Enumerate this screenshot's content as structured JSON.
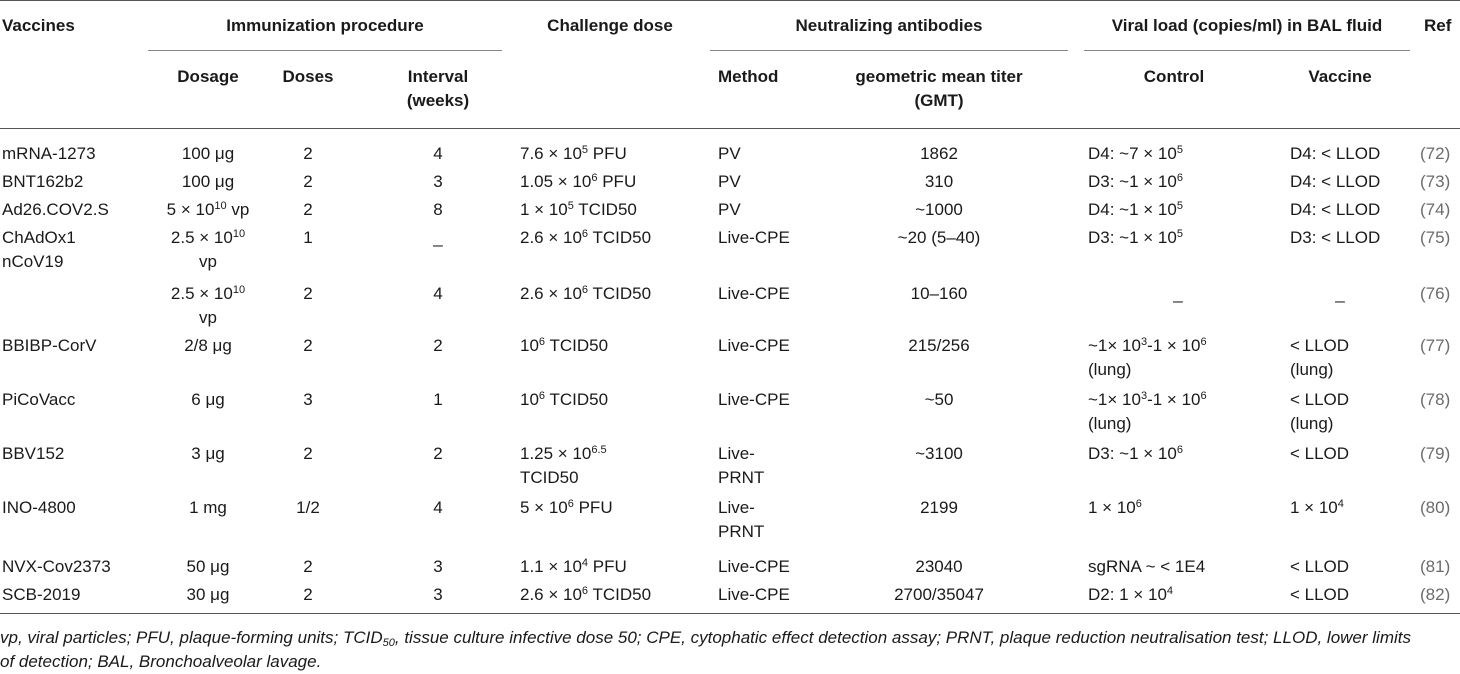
{
  "header": {
    "vaccines": "Vaccines",
    "immunization": "Immunization procedure",
    "challenge": "Challenge dose",
    "neutralizing": "Neutralizing antibodies",
    "viral_load": "Viral load (copies/ml) in BAL fluid",
    "ref": "Ref",
    "dosage": "Dosage",
    "doses": "Doses",
    "interval_1": "Interval",
    "interval_2": "(weeks)",
    "method": "Method",
    "gmt_1": "geometric mean titer",
    "gmt_2": "(GMT)",
    "control": "Control",
    "vaccine": "Vaccine"
  },
  "rows": [
    {
      "vaccine": [
        "mRNA-1273"
      ],
      "dosage": [
        "100 μg"
      ],
      "doses": "2",
      "interval": "4",
      "challenge": [
        [
          "7.6 × 10",
          "5",
          " PFU"
        ]
      ],
      "method": [
        "PV"
      ],
      "gmt": "1862",
      "control": [
        [
          "D4: ~7 × 10",
          "5",
          ""
        ]
      ],
      "vacc": [
        "D4: < LLOD"
      ],
      "ref": "(72)"
    },
    {
      "vaccine": [
        "BNT162b2"
      ],
      "dosage": [
        "100 μg"
      ],
      "doses": "2",
      "interval": "3",
      "challenge": [
        [
          "1.05 × 10",
          "6",
          " PFU"
        ]
      ],
      "method": [
        "PV"
      ],
      "gmt": "310",
      "control": [
        [
          "D3: ~1 × 10",
          "6",
          ""
        ]
      ],
      "vacc": [
        "D4: < LLOD"
      ],
      "ref": "(73)"
    },
    {
      "vaccine": [
        "Ad26.COV2.S"
      ],
      "dosage": [
        "5 × 10",
        "10",
        " vp"
      ],
      "doses": "2",
      "interval": "8",
      "challenge": [
        [
          "1 × 10",
          "5",
          " TCID50"
        ]
      ],
      "method": [
        "PV"
      ],
      "gmt": "~1000",
      "control": [
        [
          "D4: ~1 × 10",
          "5",
          ""
        ]
      ],
      "vacc": [
        "D4: < LLOD"
      ],
      "ref": "(74)"
    },
    {
      "vaccine": [
        "ChAdOx1",
        "nCoV19"
      ],
      "dosage": [
        "2.5 × 10",
        "10",
        ""
      ],
      "dosage2": "vp",
      "doses": "1",
      "interval": "_",
      "challenge": [
        [
          "2.6 × 10",
          "6",
          " TCID50"
        ]
      ],
      "method": [
        "Live-CPE"
      ],
      "gmt": "~20 (5–40)",
      "control": [
        [
          "D3: ~1 × 10",
          "5",
          ""
        ]
      ],
      "vacc": [
        "D3: < LLOD"
      ],
      "ref": "(75)"
    },
    {
      "vaccine": [],
      "dosage": [
        "2.5 × 10",
        "10",
        ""
      ],
      "dosage2": "vp",
      "doses": "2",
      "interval": "4",
      "challenge": [
        [
          "2.6 × 10",
          "6",
          " TCID50"
        ]
      ],
      "method": [
        "Live-CPE"
      ],
      "gmt": "10–160",
      "control": [
        [
          "_",
          "",
          ""
        ]
      ],
      "vacc": [
        "_"
      ],
      "ref": "(76)"
    },
    {
      "vaccine": [
        "BBIBP-CorV"
      ],
      "dosage": [
        "2/8 μg"
      ],
      "doses": "2",
      "interval": "2",
      "challenge": [
        [
          "10",
          "6",
          " TCID50"
        ]
      ],
      "method": [
        "Live-CPE"
      ],
      "gmt": "215/256",
      "control": [
        [
          "~1× 10",
          "3",
          "-1 × 10",
          "6"
        ],
        [
          "(lung)"
        ]
      ],
      "vacc": [
        "< LLOD",
        "(lung)"
      ],
      "ref": "(77)"
    },
    {
      "vaccine": [
        "PiCoVacc"
      ],
      "dosage": [
        "6 μg"
      ],
      "doses": "3",
      "interval": "1",
      "challenge": [
        [
          "10",
          "6",
          " TCID50"
        ]
      ],
      "method": [
        "Live-CPE"
      ],
      "gmt": "~50",
      "control": [
        [
          "~1× 10",
          "3",
          "-1 × 10",
          "6"
        ],
        [
          "(lung)"
        ]
      ],
      "vacc": [
        "< LLOD",
        "(lung)"
      ],
      "ref": "(78)"
    },
    {
      "vaccine": [
        "BBV152"
      ],
      "dosage": [
        "3 μg"
      ],
      "doses": "2",
      "interval": "2",
      "challenge": [
        [
          "1.25 × 10",
          "6.5",
          ""
        ],
        [
          "TCID50"
        ]
      ],
      "method": [
        "Live-",
        "PRNT"
      ],
      "gmt": "~3100",
      "control": [
        [
          "D3: ~1 × 10",
          "6",
          ""
        ]
      ],
      "vacc": [
        "< LLOD"
      ],
      "ref": "(79)"
    },
    {
      "vaccine": [
        "INO-4800"
      ],
      "dosage": [
        "1 mg"
      ],
      "doses": "1/2",
      "interval": "4",
      "challenge": [
        [
          "5 × 10",
          "6",
          " PFU"
        ]
      ],
      "method": [
        "Live-",
        "PRNT"
      ],
      "gmt": "2199",
      "control": [
        [
          "1 × 10",
          "6",
          ""
        ]
      ],
      "vacc": [
        "1 × 10|4"
      ],
      "ref": "(80)"
    },
    {
      "vaccine": [
        "NVX-Cov2373"
      ],
      "dosage": [
        "50 μg"
      ],
      "doses": "2",
      "interval": "3",
      "challenge": [
        [
          "1.1 × 10",
          "4",
          " PFU"
        ]
      ],
      "method": [
        "Live-CPE"
      ],
      "gmt": "23040",
      "control": [
        [
          "sgRNA ~ < 1E4",
          "",
          ""
        ]
      ],
      "vacc": [
        "< LLOD"
      ],
      "ref": "(81)"
    },
    {
      "vaccine": [
        "SCB-2019"
      ],
      "dosage": [
        "30 μg"
      ],
      "doses": "2",
      "interval": "3",
      "challenge": [
        [
          "2.6 × 10",
          "6",
          " TCID50"
        ]
      ],
      "method": [
        "Live-CPE"
      ],
      "gmt": "2700/35047",
      "control": [
        [
          "D2: 1 × 10",
          "4",
          ""
        ]
      ],
      "vacc": [
        "< LLOD"
      ],
      "ref": "(82)"
    }
  ],
  "footnote": {
    "line1_a": "vp, viral particles; PFU, plaque-forming units; TCID",
    "line1_sub": "50",
    "line1_b": ", tissue culture infective dose 50; CPE, cytophatic effect detection assay; PRNT, plaque reduction neutralisation test; LLOD, lower limits",
    "line2": "of detection; BAL, Bronchoalveolar lavage."
  }
}
